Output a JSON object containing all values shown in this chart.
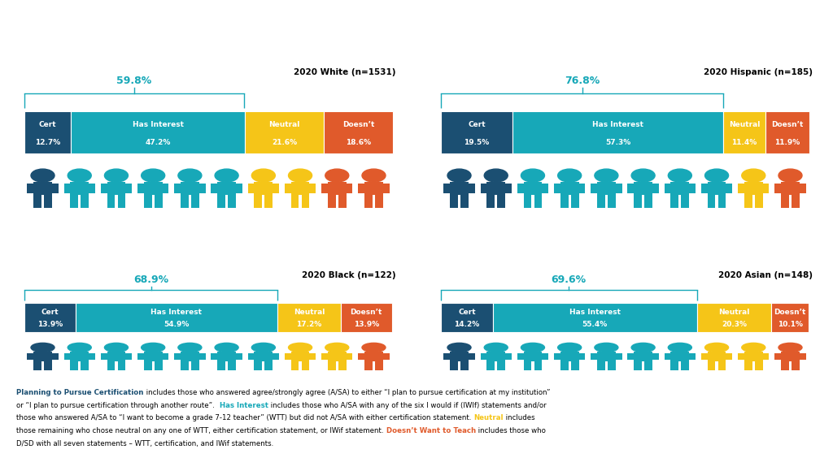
{
  "groups": [
    {
      "title": "2020 White (n=1531)",
      "pct_label": "59.8%",
      "cert": 12.7,
      "interest": 47.2,
      "neutral": 21.6,
      "doesnt": 18.6,
      "combined": 59.8
    },
    {
      "title": "2020 Hispanic (n=185)",
      "pct_label": "76.8%",
      "cert": 19.5,
      "interest": 57.3,
      "neutral": 11.4,
      "doesnt": 11.9,
      "combined": 76.8
    },
    {
      "title": "2020 Black (n=122)",
      "pct_label": "68.9%",
      "cert": 13.9,
      "interest": 54.9,
      "neutral": 17.2,
      "doesnt": 13.9,
      "combined": 68.9
    },
    {
      "title": "2020 Asian (n=148)",
      "pct_label": "69.6%",
      "cert": 14.2,
      "interest": 55.4,
      "neutral": 20.3,
      "doesnt": 10.1,
      "combined": 69.6
    }
  ],
  "colors": {
    "cert": "#1b4f72",
    "interest": "#17a8b8",
    "neutral": "#f5c518",
    "doesnt": "#e05a2b"
  },
  "n_figures": 10,
  "bg_color": "#ffffff",
  "pct_label_color": "#17a8b8",
  "title_color": "#000000",
  "footnote": [
    [
      {
        "text": "Planning to Pursue Certification",
        "color": "#1b4f72",
        "bold": true
      },
      {
        "text": " includes those who answered agree/strongly agree (A/SA) to either “I plan to pursue certification at my institution”",
        "color": "#000000",
        "bold": false
      }
    ],
    [
      {
        "text": "or “I plan to pursue certification through another route”.  ",
        "color": "#000000",
        "bold": false
      },
      {
        "text": "Has Interest",
        "color": "#17a8b8",
        "bold": true
      },
      {
        "text": " includes those who A/SA with any of the six I would if (IWIf) statements and/or",
        "color": "#000000",
        "bold": false
      }
    ],
    [
      {
        "text": "those who answered A/SA to “I want to become a grade 7-12 teacher” (WTT) but did not A/SA with either certification statement. ",
        "color": "#000000",
        "bold": false
      },
      {
        "text": "Neutral",
        "color": "#f5c518",
        "bold": true
      },
      {
        "text": " includes",
        "color": "#000000",
        "bold": false
      }
    ],
    [
      {
        "text": "those remaining who chose neutral on any one of WTT, either certification statement, or IWif statement. ",
        "color": "#000000",
        "bold": false
      },
      {
        "text": "Doesn’t Want to Teach",
        "color": "#e05a2b",
        "bold": true
      },
      {
        "text": " includes those who",
        "color": "#000000",
        "bold": false
      }
    ],
    [
      {
        "text": "D/SD with all seven statements – WTT, certification, and IWif statements.",
        "color": "#000000",
        "bold": false
      }
    ]
  ]
}
